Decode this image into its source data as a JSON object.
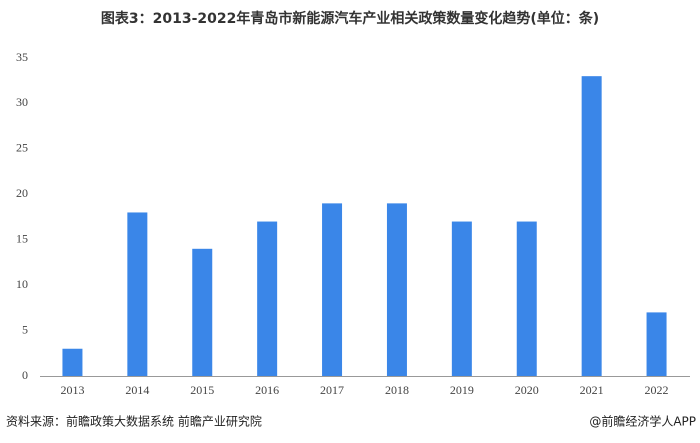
{
  "chart_data": {
    "type": "bar",
    "title": "图表3：2013-2022年青岛市新能源汽车产业相关政策数量变化趋势(单位：条)",
    "categories": [
      "2013",
      "2014",
      "2015",
      "2016",
      "2017",
      "2018",
      "2019",
      "2020",
      "2021",
      "2022"
    ],
    "values": [
      3,
      18,
      14,
      17,
      19,
      19,
      17,
      17,
      33,
      7
    ],
    "color": "#3a86e8",
    "ylim": [
      0,
      35
    ],
    "yticks": [
      0,
      5,
      10,
      15,
      20,
      25,
      30,
      35
    ],
    "grid": false,
    "source": "资料来源：前瞻政策大数据系统 前瞻产业研究院",
    "credit": "@前瞻经济学人APP"
  }
}
